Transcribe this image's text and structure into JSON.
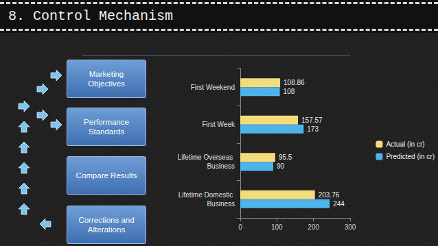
{
  "header": {
    "title": "8. Control Mechanism"
  },
  "diagram": {
    "nodes": [
      {
        "label": "Marketing Objectives"
      },
      {
        "label": "Performance Standards"
      },
      {
        "label": "Compare Results"
      },
      {
        "label": "Corrections and Alterations"
      }
    ]
  },
  "chart_data": {
    "type": "bar",
    "orientation": "horizontal",
    "categories": [
      "First Weekend",
      "First Week",
      "Lifetime Overseas Business",
      "Lifetime Domestic Business"
    ],
    "series": [
      {
        "name": "Actual (in cr)",
        "color": "#f3dc7c",
        "values": [
          108.86,
          157.57,
          95.5,
          203.76
        ]
      },
      {
        "name": "Predicted (in cr)",
        "color": "#4db3e8",
        "values": [
          108,
          173,
          90,
          244
        ]
      }
    ],
    "xlim": [
      0,
      300
    ],
    "xticks": [
      0,
      100,
      200,
      300
    ],
    "grid": false,
    "legend": "right",
    "data_labels": true
  }
}
